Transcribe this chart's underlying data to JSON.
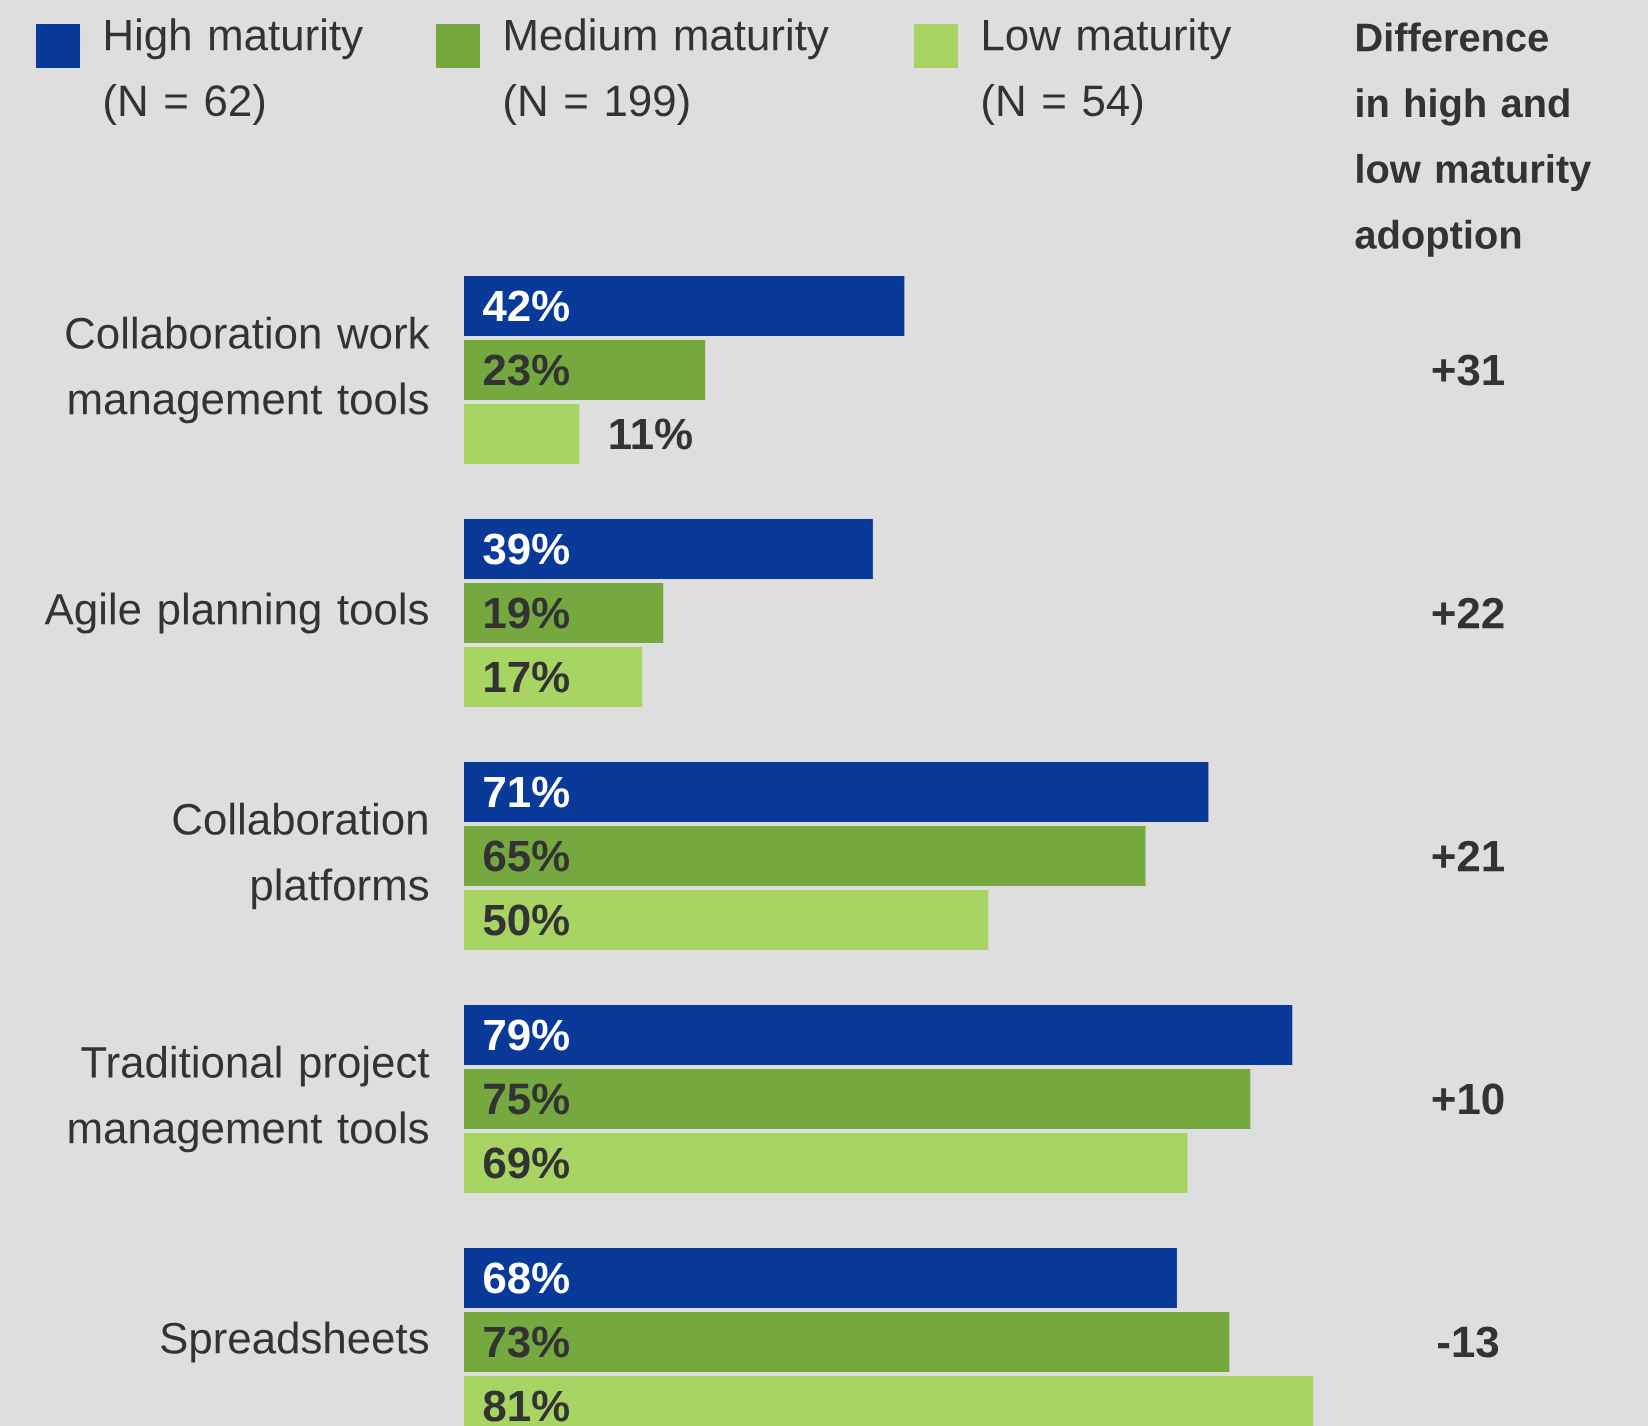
{
  "chart_data": {
    "type": "bar",
    "orientation": "horizontal",
    "legend": "top",
    "categories": [
      "Collaboration work management tools",
      "Agile planning tools",
      "Collaboration platforms",
      "Traditional project management tools",
      "Spreadsheets"
    ],
    "series": [
      {
        "name": "High maturity (N = 62)",
        "color": "#0a3a99",
        "values": [
          42,
          39,
          71,
          79,
          68
        ],
        "value_labels": [
          "42%",
          "39%",
          "71%",
          "79%",
          "68%"
        ]
      },
      {
        "name": "Medium maturity (N = 199)",
        "color": "#76a840",
        "values": [
          23,
          19,
          65,
          75,
          73
        ],
        "value_labels": [
          "23%",
          "19%",
          "65%",
          "75%",
          "73%"
        ]
      },
      {
        "name": "Low maturity (N = 54)",
        "color": "#a8d464",
        "values": [
          11,
          17,
          50,
          69,
          81
        ],
        "value_labels": [
          "11%",
          "17%",
          "50%",
          "69%",
          "81%"
        ]
      }
    ],
    "annotations": [
      "Difference in high and low maturity adoption",
      "+31",
      "+22",
      "+21",
      "+10",
      "-13"
    ]
  }
}
